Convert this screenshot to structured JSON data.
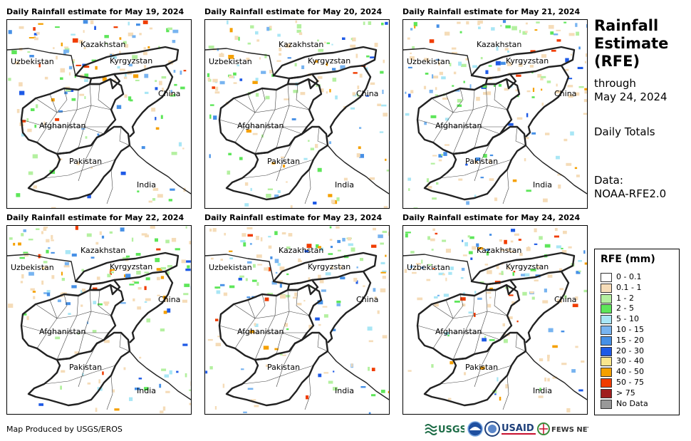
{
  "panels": [
    {
      "title": "Daily Rainfall estimate for May 19, 2024"
    },
    {
      "title": "Daily Rainfall estimate for May 20, 2024"
    },
    {
      "title": "Daily Rainfall estimate for May 21, 2024"
    },
    {
      "title": "Daily Rainfall estimate for May 22, 2024"
    },
    {
      "title": "Daily Rainfall estimate for May 23, 2024"
    },
    {
      "title": "Daily Rainfall estimate for May 24, 2024"
    }
  ],
  "map_labels": {
    "kazakhstan": "Kazakhstan",
    "uzbekistan": "Uzbekistan",
    "kyrgyzstan": "Kyrgyzstan",
    "china": "China",
    "afghanistan": "Afghanistan",
    "pakistan": "Pakistan",
    "india": "India"
  },
  "side": {
    "title_line1": "Rainfall",
    "title_line2": "Estimate",
    "title_line3": "(RFE)",
    "through_line1": "through",
    "through_line2": "May 24, 2024",
    "totals": "Daily Totals",
    "data_line1": "Data:",
    "data_line2": "NOAA-RFE2.0"
  },
  "legend": {
    "title": "RFE (mm)",
    "items": [
      {
        "label": "0 - 0.1",
        "color": "#ffffff"
      },
      {
        "label": "0.1 - 1",
        "color": "#f5dcb8"
      },
      {
        "label": "1 - 2",
        "color": "#b4f0a0"
      },
      {
        "label": "2 - 5",
        "color": "#5ee65a"
      },
      {
        "label": "5 - 10",
        "color": "#a8e6f5"
      },
      {
        "label": "10 - 15",
        "color": "#78b4f0"
      },
      {
        "label": "15 - 20",
        "color": "#4690e6"
      },
      {
        "label": "20 - 30",
        "color": "#1e5ae6"
      },
      {
        "label": "30 - 40",
        "color": "#fae68c"
      },
      {
        "label": "40 - 50",
        "color": "#f5a000"
      },
      {
        "label": "50 - 75",
        "color": "#f03c00"
      },
      {
        "label": "> 75",
        "color": "#a01e1e"
      },
      {
        "label": "No Data",
        "color": "#999999"
      }
    ]
  },
  "footer": "Map Produced by USGS/EROS",
  "logos": {
    "usgs": "USGS",
    "usaid": "USAID",
    "fewsnet": "FEWS NET"
  }
}
